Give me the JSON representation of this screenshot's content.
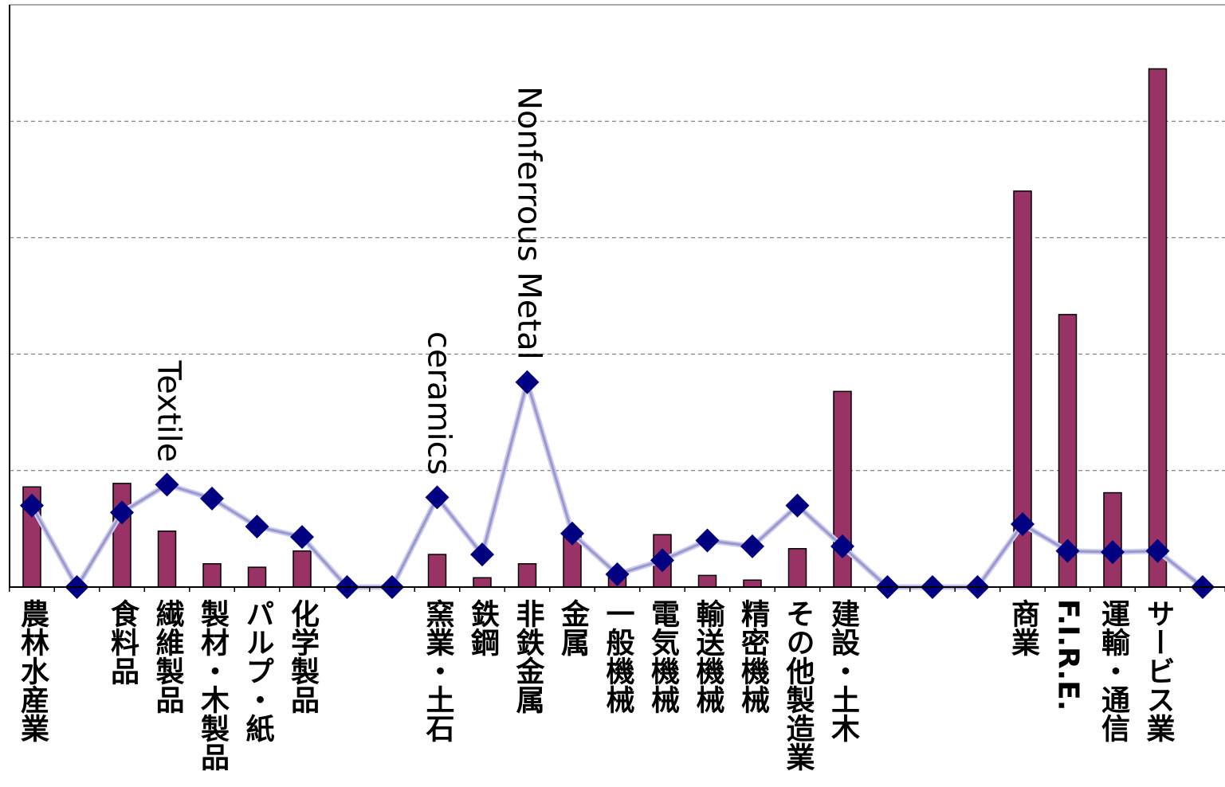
{
  "chart_data": {
    "type": "bar",
    "title": "",
    "xlabel": "",
    "ylabel": "",
    "ylim": [
      0,
      5
    ],
    "grid": true,
    "grid_style": "dashed",
    "categories": [
      "農林水産業",
      "",
      "食料品",
      "繊維製品",
      "製材・木製品",
      "パルプ・紙",
      "化学製品",
      "",
      "",
      "窯業・土石",
      "鉄鋼",
      "非鉄金属",
      "金属",
      "一般機械",
      "電気機械",
      "輸送機械",
      "精密機械",
      "その他製造業",
      "建設・土木",
      "",
      "",
      "",
      "商業",
      "F.I.R.E.",
      "運輸・通信",
      "サービス業",
      ""
    ],
    "series": [
      {
        "name": "",
        "type": "bar",
        "color": "#993366",
        "values": [
          0.86,
          0,
          0.89,
          0.48,
          0.2,
          0.17,
          0.31,
          0,
          0,
          0.28,
          0.08,
          0.2,
          0.43,
          0.1,
          0.45,
          0.1,
          0.06,
          0.33,
          1.68,
          0,
          0,
          0,
          3.4,
          2.34,
          0.81,
          4.45,
          0
        ]
      },
      {
        "name": "",
        "type": "line",
        "color": "#9999cc",
        "marker_color": "#000080",
        "values": [
          0.7,
          0,
          0.64,
          0.88,
          0.76,
          0.52,
          0.43,
          0,
          0,
          0.77,
          0.28,
          1.76,
          0.46,
          0.11,
          0.23,
          0.4,
          0.35,
          0.7,
          0.35,
          0,
          0,
          0,
          0.54,
          0.31,
          0.3,
          0.31,
          0
        ]
      }
    ],
    "annotations": [
      {
        "text": "Textile",
        "category_index": 3
      },
      {
        "text": "ceramics",
        "category_index": 9
      },
      {
        "text": "Nonferrous Metal",
        "category_index": 11
      }
    ]
  }
}
